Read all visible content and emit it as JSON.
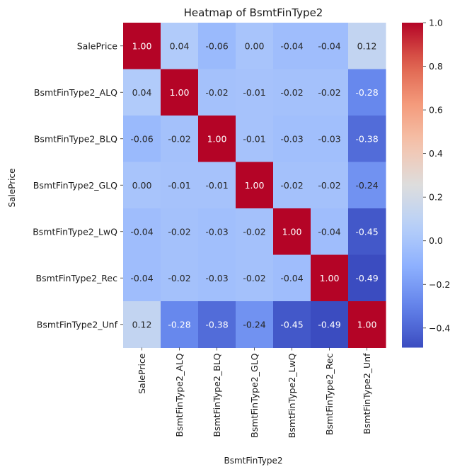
{
  "chart_data": {
    "type": "heatmap",
    "title": "Heatmap of BsmtFinType2",
    "xlabel": "BsmtFinType2",
    "ylabel": "SalePrice",
    "x_categories": [
      "SalePrice",
      "BsmtFinType2_ALQ",
      "BsmtFinType2_BLQ",
      "BsmtFinType2_GLQ",
      "BsmtFinType2_LwQ",
      "BsmtFinType2_Rec",
      "BsmtFinType2_Unf"
    ],
    "y_categories": [
      "SalePrice",
      "BsmtFinType2_ALQ",
      "BsmtFinType2_BLQ",
      "BsmtFinType2_GLQ",
      "BsmtFinType2_LwQ",
      "BsmtFinType2_Rec",
      "BsmtFinType2_Unf"
    ],
    "values": [
      [
        1.0,
        0.04,
        -0.06,
        0.0,
        -0.04,
        -0.04,
        0.12
      ],
      [
        0.04,
        1.0,
        -0.02,
        -0.01,
        -0.02,
        -0.02,
        -0.28
      ],
      [
        -0.06,
        -0.02,
        1.0,
        -0.01,
        -0.03,
        -0.03,
        -0.38
      ],
      [
        0.0,
        -0.01,
        -0.01,
        1.0,
        -0.02,
        -0.02,
        -0.24
      ],
      [
        -0.04,
        -0.02,
        -0.03,
        -0.02,
        1.0,
        -0.04,
        -0.45
      ],
      [
        -0.04,
        -0.02,
        -0.03,
        -0.02,
        -0.04,
        1.0,
        -0.49
      ],
      [
        0.12,
        -0.28,
        -0.38,
        -0.24,
        -0.45,
        -0.49,
        1.0
      ]
    ],
    "colormap": "coolwarm",
    "vmin": -0.49,
    "vmax": 1.0,
    "colorbar_ticks": [
      -0.4,
      -0.2,
      0.0,
      0.2,
      0.4,
      0.6,
      0.8,
      1.0
    ],
    "colorbar_tick_labels": [
      "−0.4",
      "−0.2",
      "0.0",
      "0.2",
      "0.4",
      "0.6",
      "0.8",
      "1.0"
    ],
    "annotation_format": "0.00"
  }
}
